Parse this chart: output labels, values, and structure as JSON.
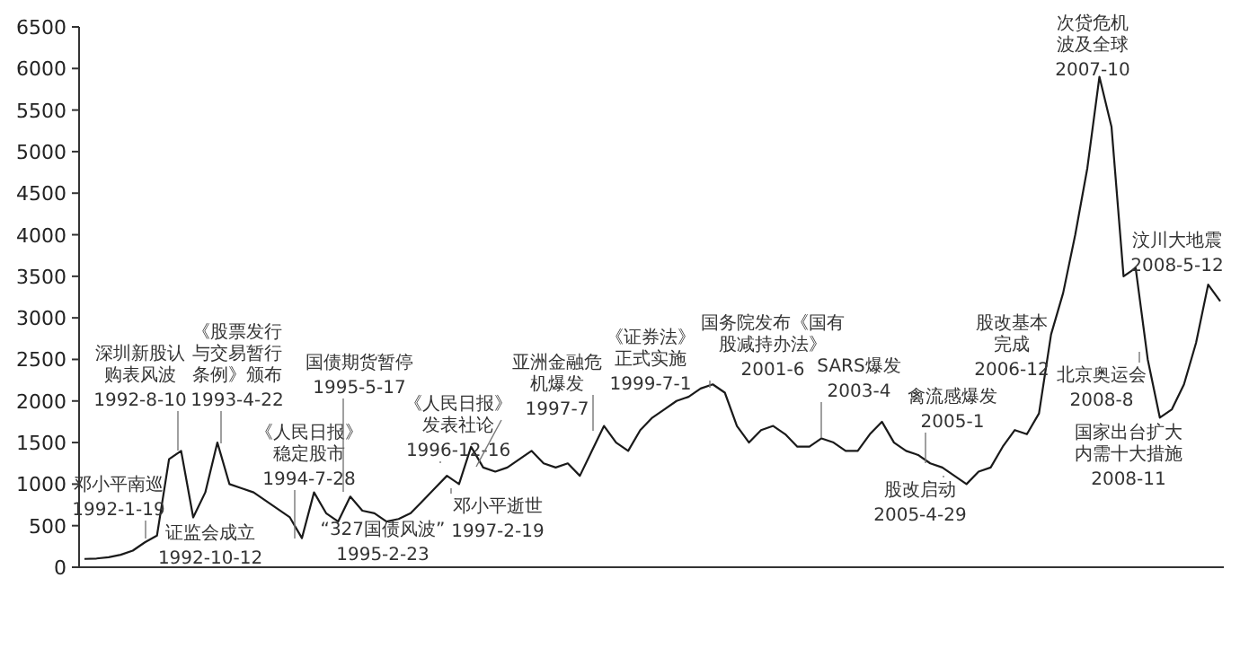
{
  "chart_data": {
    "type": "line",
    "categories": [
      null,
      null,
      null,
      null,
      null,
      null,
      null,
      null,
      null,
      null,
      null,
      null,
      null,
      null,
      null,
      null,
      null,
      null,
      null,
      null,
      null,
      null,
      null,
      null,
      null,
      null,
      null,
      null,
      null,
      null,
      null,
      null,
      null,
      null,
      null,
      null,
      null,
      null,
      null,
      null,
      null,
      null,
      null,
      null,
      null,
      null,
      null,
      null,
      null,
      null,
      null,
      null,
      null,
      null,
      null,
      null,
      null,
      null,
      null,
      null,
      null,
      null,
      null,
      null,
      null,
      null,
      null,
      null,
      null,
      null,
      null,
      null,
      null,
      null,
      null,
      null,
      null,
      null,
      null,
      null,
      null,
      null,
      null,
      null,
      null,
      null,
      null,
      null,
      null,
      null,
      null,
      null,
      null,
      null,
      null
    ],
    "ylim": [
      0,
      6500
    ],
    "yticks": [
      0,
      500,
      1000,
      1500,
      2000,
      2500,
      3000,
      3500,
      4000,
      4500,
      5000,
      5500,
      6000,
      6500
    ],
    "tick_labels": "y",
    "grid": false,
    "marker": "none",
    "line_style": "solid",
    "series": [
      {
        "color": "#1a1a1a",
        "values": [
          100,
          105,
          120,
          150,
          200,
          300,
          380,
          1300,
          1400,
          600,
          900,
          1500,
          1000,
          950,
          900,
          800,
          700,
          600,
          350,
          900,
          650,
          550,
          850,
          680,
          650,
          550,
          580,
          650,
          800,
          950,
          1100,
          1000,
          1450,
          1200,
          1150,
          1200,
          1300,
          1400,
          1250,
          1200,
          1250,
          1100,
          1400,
          1700,
          1500,
          1400,
          1650,
          1800,
          1900,
          2000,
          2050,
          2150,
          2200,
          2100,
          1700,
          1500,
          1650,
          1700,
          1600,
          1450,
          1450,
          1550,
          1500,
          1400,
          1400,
          1600,
          1750,
          1500,
          1400,
          1350,
          1250,
          1200,
          1100,
          1000,
          1150,
          1200,
          1450,
          1650,
          1600,
          1850,
          2800,
          3300,
          4000,
          4800,
          5900,
          5300,
          3500,
          3600,
          2500,
          1800,
          1900,
          2200,
          2700,
          3400,
          3200
        ]
      }
    ],
    "annotations": [
      "邓小平南巡\n1992-1-19",
      "深圳新股认购表风波\n1992-8-10",
      "证监会成立\n1992-10-12",
      "《股票发行与交易暂行条例》颁布\n1993-4-22",
      "《人民日报》稳定股市\n1994-7-28",
      "国债期货暂停\n1995-5-17",
      "“327国债风波”\n1995-2-23",
      "《人民日报》发表社论\n1996-12-16",
      "邓小平逝世\n1997-2-19",
      "亚洲金融危机爆发\n1997-7",
      "《证券法》正式实施\n1999-7-1",
      "国务院发布《国有股减持办法》\n2001-6",
      "SARS爆发\n2003-4",
      "禽流感爆发\n2005-1",
      "股改启动\n2005-4-29",
      "股改基本完成\n2006-12",
      "次贷危机波及全球\n2007-10",
      "汶川大地震\n2008-5-12",
      "北京奥运会\n2008-8",
      "国家出台扩大内需十大措施\n2008-11"
    ]
  }
}
